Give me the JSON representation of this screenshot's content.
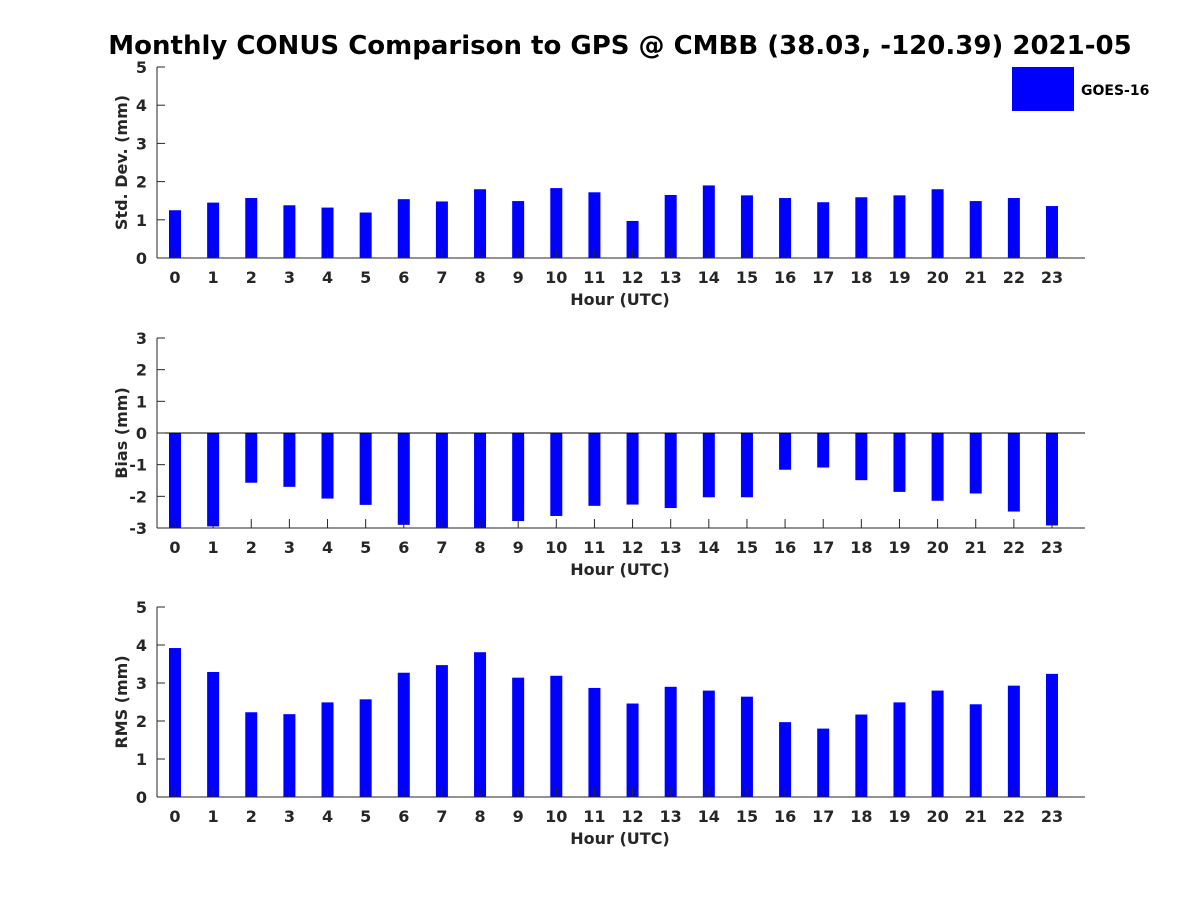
{
  "figure": {
    "title": "Monthly CONUS Comparison to GPS @ CMBB (38.03, -120.39) 2021-05",
    "bar_color": "#0000ff",
    "legend": {
      "label": "GOES-16",
      "color": "#0000ff",
      "placement": "top-right"
    }
  },
  "chart_data": [
    {
      "type": "bar",
      "name": "std-dev",
      "title": "",
      "xlabel": "Hour (UTC)",
      "ylabel": "Std. Dev. (mm)",
      "categories": [
        "0",
        "1",
        "2",
        "3",
        "4",
        "5",
        "6",
        "7",
        "8",
        "9",
        "10",
        "11",
        "12",
        "13",
        "14",
        "15",
        "16",
        "17",
        "18",
        "19",
        "20",
        "21",
        "22",
        "23"
      ],
      "series": [
        {
          "name": "GOES-16",
          "values": [
            1.25,
            1.45,
            1.57,
            1.38,
            1.32,
            1.19,
            1.54,
            1.48,
            1.8,
            1.49,
            1.83,
            1.72,
            0.97,
            1.65,
            1.9,
            1.64,
            1.57,
            1.46,
            1.59,
            1.64,
            1.8,
            1.49,
            1.57,
            1.36
          ]
        }
      ],
      "ylim": [
        0,
        5
      ],
      "yticks": [
        "0",
        "1",
        "2",
        "3",
        "4",
        "5"
      ],
      "grid": false,
      "show_legend": true
    },
    {
      "type": "bar",
      "name": "bias",
      "title": "",
      "xlabel": "Hour (UTC)",
      "ylabel": "Bias (mm)",
      "categories": [
        "0",
        "1",
        "2",
        "3",
        "4",
        "5",
        "6",
        "7",
        "8",
        "9",
        "10",
        "11",
        "12",
        "13",
        "14",
        "15",
        "16",
        "17",
        "18",
        "19",
        "20",
        "21",
        "22",
        "23"
      ],
      "series": [
        {
          "name": "GOES-16",
          "values": [
            -3.0,
            -2.95,
            -1.57,
            -1.7,
            -2.07,
            -2.27,
            -2.9,
            -3.0,
            -3.0,
            -2.78,
            -2.62,
            -2.3,
            -2.26,
            -2.37,
            -2.03,
            -2.03,
            -1.16,
            -1.09,
            -1.49,
            -1.86,
            -2.14,
            -1.91,
            -2.48,
            -2.92
          ]
        }
      ],
      "ylim": [
        -3,
        3
      ],
      "yticks": [
        "-3",
        "-2",
        "-1",
        "0",
        "1",
        "2",
        "3"
      ],
      "grid": false,
      "show_legend": false
    },
    {
      "type": "bar",
      "name": "rms",
      "title": "",
      "xlabel": "Hour (UTC)",
      "ylabel": "RMS (mm)",
      "categories": [
        "0",
        "1",
        "2",
        "3",
        "4",
        "5",
        "6",
        "7",
        "8",
        "9",
        "10",
        "11",
        "12",
        "13",
        "14",
        "15",
        "16",
        "17",
        "18",
        "19",
        "20",
        "21",
        "22",
        "23"
      ],
      "series": [
        {
          "name": "GOES-16",
          "values": [
            3.92,
            3.29,
            2.23,
            2.18,
            2.49,
            2.57,
            3.27,
            3.47,
            3.81,
            3.14,
            3.19,
            2.87,
            2.46,
            2.9,
            2.8,
            2.64,
            1.97,
            1.8,
            2.17,
            2.49,
            2.8,
            2.44,
            2.93,
            3.24
          ]
        }
      ],
      "ylim": [
        0,
        5
      ],
      "yticks": [
        "0",
        "1",
        "2",
        "3",
        "4",
        "5"
      ],
      "grid": false,
      "show_legend": false
    }
  ]
}
